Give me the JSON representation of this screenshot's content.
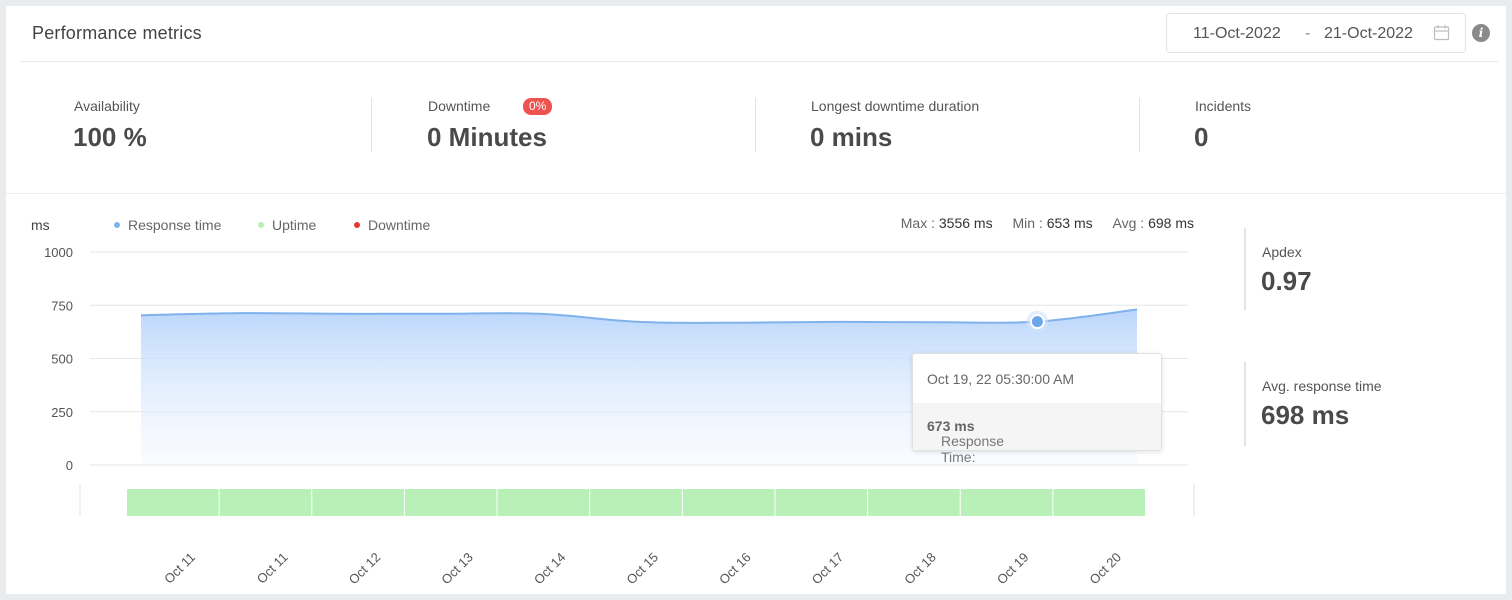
{
  "header": {
    "title": "Performance metrics",
    "date_from": "11-Oct-2022",
    "date_separator": "-",
    "date_to": "21-Oct-2022",
    "info_icon": "i"
  },
  "metrics": {
    "availability": {
      "label": "Availability",
      "value": "100 %"
    },
    "downtime": {
      "label": "Downtime",
      "badge": "0%",
      "value": "0 Minutes"
    },
    "longest": {
      "label": "Longest downtime duration",
      "value": "0 mins"
    },
    "incidents": {
      "label": "Incidents",
      "value": "0"
    }
  },
  "legend": {
    "unit": "ms",
    "response": "Response time",
    "uptime": "Uptime",
    "downtime": "Downtime"
  },
  "stats": {
    "max_label": "Max :",
    "max_value": "3556 ms",
    "min_label": "Min :",
    "min_value": "653 ms",
    "avg_label": "Avg :",
    "avg_value": "698 ms"
  },
  "side": {
    "apdex_label": "Apdex",
    "apdex_value": "0.97",
    "avg_label": "Avg. response time",
    "avg_value": "698 ms"
  },
  "tooltip": {
    "date": "Oct 19, 22 05:30:00 AM",
    "label": "Response Time:",
    "value": "673 ms"
  },
  "colors": {
    "response": "#7fb2ec",
    "uptime": "#b8f0b8",
    "downtime": "#e53935",
    "badge": "#ef5350"
  },
  "chart_data": {
    "type": "area",
    "ylabel": "ms",
    "ylim": [
      0,
      1000
    ],
    "y_ticks": [
      0,
      250,
      500,
      750,
      1000
    ],
    "x_labels": [
      "Oct 11",
      "Oct 11",
      "Oct 12",
      "Oct 13",
      "Oct 14",
      "Oct 15",
      "Oct 16",
      "Oct 17",
      "Oct 18",
      "Oct 19",
      "Oct 20"
    ],
    "series": [
      {
        "name": "Response time",
        "values": [
          703,
          713,
          710,
          710,
          710,
          672,
          668,
          672,
          670,
          673,
          730
        ]
      }
    ],
    "uptime_segments": 11,
    "highlighted_index": 9
  }
}
